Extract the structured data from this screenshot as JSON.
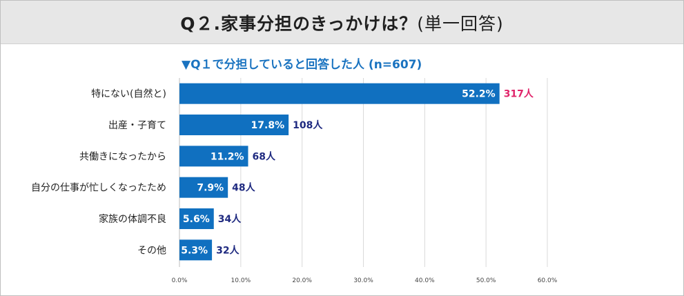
{
  "header": {
    "title_main": "Q２.家事分担のきっかけは？",
    "title_paren": "(単一回答)"
  },
  "chart_data": {
    "type": "bar",
    "orientation": "horizontal",
    "subtitle": "▼Q１で分担していると回答した人 (n=607)",
    "categories": [
      "特にない(自然と)",
      "出産・子育て",
      "共働きになったから",
      "自分の仕事が忙しくなったため",
      "家族の体調不良",
      "その他"
    ],
    "values": [
      52.2,
      17.8,
      11.2,
      7.9,
      5.6,
      5.3
    ],
    "value_labels": [
      "52.2%",
      "17.8%",
      "11.2%",
      "7.9%",
      "5.6%",
      "5.3%"
    ],
    "count_labels": [
      "317人",
      "108人",
      "68人",
      "48人",
      "34人",
      "32人"
    ],
    "xlim": [
      0,
      60
    ],
    "x_ticks": [
      "0.0%",
      "10.0%",
      "20.0%",
      "30.0%",
      "40.0%",
      "50.0%",
      "60.0%"
    ],
    "grid": true,
    "colors": {
      "bar": "#1070c0",
      "count_default": "#1f2a80",
      "count_highlight": "#e0246a",
      "grid": "#d9d9d9",
      "subtitle": "#1a73c0"
    }
  }
}
